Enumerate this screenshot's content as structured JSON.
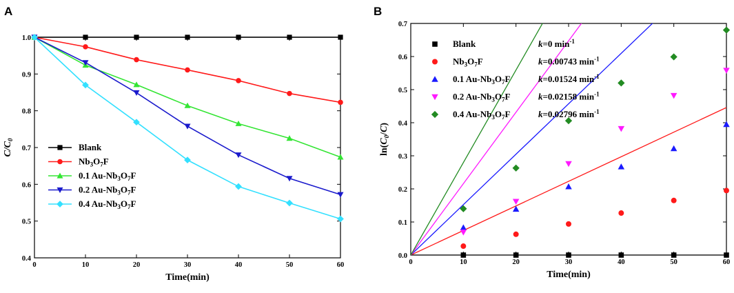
{
  "chart_data": [
    {
      "panel": "A",
      "type": "line",
      "xlabel": "Time(min)",
      "ylabel": "C/C_0",
      "ylabel_parts": {
        "main": "C/C",
        "sub": "0"
      },
      "xlim": [
        0,
        60
      ],
      "ylim": [
        0.4,
        1.0
      ],
      "xticks": [
        0,
        10,
        20,
        30,
        40,
        50,
        60
      ],
      "yticks": [
        0.4,
        0.5,
        0.6,
        0.7,
        0.8,
        0.9,
        1.0
      ],
      "legend_position": "bottom-left",
      "x": [
        0,
        10,
        20,
        30,
        40,
        50,
        60
      ],
      "series": [
        {
          "name": "Blank",
          "label_parts": [
            {
              "t": "Blank"
            }
          ],
          "color": "#000000",
          "marker": "square",
          "values": [
            1.0,
            1.0,
            1.0,
            1.0,
            1.0,
            1.0,
            1.0
          ]
        },
        {
          "name": "Nb3O7F",
          "label_parts": [
            {
              "t": "Nb"
            },
            {
              "t": "3",
              "sub": true
            },
            {
              "t": "O"
            },
            {
              "t": "7",
              "sub": true
            },
            {
              "t": "F"
            }
          ],
          "color": "#ff1a1a",
          "marker": "circle",
          "values": [
            1.0,
            0.974,
            0.939,
            0.911,
            0.882,
            0.847,
            0.823
          ]
        },
        {
          "name": "0.1 Au-Nb3O7F",
          "label_parts": [
            {
              "t": "0.1 Au-Nb"
            },
            {
              "t": "3",
              "sub": true
            },
            {
              "t": "O"
            },
            {
              "t": "7",
              "sub": true
            },
            {
              "t": "F"
            }
          ],
          "color": "#33e533",
          "marker": "triangle-up",
          "values": [
            1.0,
            0.924,
            0.871,
            0.814,
            0.765,
            0.725,
            0.674
          ]
        },
        {
          "name": "0.2 Au-Nb3O7F",
          "label_parts": [
            {
              "t": "0.2 Au-Nb"
            },
            {
              "t": "3",
              "sub": true
            },
            {
              "t": "O"
            },
            {
              "t": "7",
              "sub": true
            },
            {
              "t": "F"
            }
          ],
          "color": "#1a1acc",
          "marker": "triangle-down",
          "values": [
            1.0,
            0.931,
            0.849,
            0.758,
            0.68,
            0.616,
            0.572
          ]
        },
        {
          "name": "0.4 Au-Nb3O7F",
          "label_parts": [
            {
              "t": "0.4 Au-Nb"
            },
            {
              "t": "3",
              "sub": true
            },
            {
              "t": "O"
            },
            {
              "t": "7",
              "sub": true
            },
            {
              "t": "F"
            }
          ],
          "color": "#33e0ff",
          "marker": "diamond",
          "values": [
            1.0,
            0.87,
            0.769,
            0.666,
            0.594,
            0.549,
            0.506
          ]
        }
      ]
    },
    {
      "panel": "B",
      "type": "scatter",
      "xlabel": "Time(min)",
      "ylabel": "ln(C_0/C)",
      "ylabel_parts": {
        "pre": "ln(",
        "main": "C",
        "sub": "0",
        "post": "/C)"
      },
      "xlim": [
        0,
        60
      ],
      "ylim": [
        0,
        0.7
      ],
      "xticks": [
        0,
        10,
        20,
        30,
        40,
        50,
        60
      ],
      "yticks": [
        0.0,
        0.1,
        0.2,
        0.3,
        0.4,
        0.5,
        0.6,
        0.7
      ],
      "legend_position": "top-left",
      "x": [
        0,
        10,
        20,
        30,
        40,
        50,
        60
      ],
      "series": [
        {
          "name": "Blank",
          "label_parts": [
            {
              "t": "Blank"
            }
          ],
          "k_label": "k=0 min-1",
          "k_parts": {
            "k": "k",
            "rest": "=0 min",
            "sup": "-1"
          },
          "k": 0.0,
          "color": "#000000",
          "marker": "square",
          "values": [
            0,
            0,
            0,
            0,
            0,
            0,
            0
          ]
        },
        {
          "name": "Nb3O7F",
          "label_parts": [
            {
              "t": "Nb"
            },
            {
              "t": "3",
              "sub": true
            },
            {
              "t": "O"
            },
            {
              "t": "7",
              "sub": true
            },
            {
              "t": "F"
            }
          ],
          "k_label": "k=0.00743 min-1",
          "k_parts": {
            "k": "k",
            "rest": "=0.00743 min",
            "sup": "-1"
          },
          "k": 0.00743,
          "color": "#ff1a1a",
          "marker": "circle",
          "values": [
            0,
            0.027,
            0.063,
            0.094,
            0.127,
            0.165,
            0.195
          ]
        },
        {
          "name": "0.1 Au-Nb3O7F",
          "label_parts": [
            {
              "t": "0.1 Au-Nb"
            },
            {
              "t": "3",
              "sub": true
            },
            {
              "t": "O"
            },
            {
              "t": "7",
              "sub": true
            },
            {
              "t": "F"
            }
          ],
          "k_label": "k=0.01524 min-1",
          "k_parts": {
            "k": "k",
            "rest": "=0.01524 min",
            "sup": "-1"
          },
          "k": 0.01524,
          "color": "#1a1aff",
          "marker": "triangle-up",
          "values": [
            0,
            0.083,
            0.139,
            0.207,
            0.267,
            0.322,
            0.395
          ]
        },
        {
          "name": "0.2 Au-Nb3O7F",
          "label_parts": [
            {
              "t": "0.2 Au-Nb"
            },
            {
              "t": "3",
              "sub": true
            },
            {
              "t": "O"
            },
            {
              "t": "7",
              "sub": true
            },
            {
              "t": "F"
            }
          ],
          "k_label": "k=0.02158 min-1",
          "k_parts": {
            "k": "k",
            "rest": "=0.02158 min",
            "sup": "-1"
          },
          "k": 0.02158,
          "color": "#ff1aff",
          "marker": "triangle-down",
          "values": [
            0,
            0.069,
            0.162,
            0.276,
            0.382,
            0.482,
            0.558
          ]
        },
        {
          "name": "0.4 Au-Nb3O7F",
          "label_parts": [
            {
              "t": "0.4 Au-Nb"
            },
            {
              "t": "3",
              "sub": true
            },
            {
              "t": "O"
            },
            {
              "t": "7",
              "sub": true
            },
            {
              "t": "F"
            }
          ],
          "k_label": "k=0.02796 min-1",
          "k_parts": {
            "k": "k",
            "rest": "=0.02796 min",
            "sup": "-1"
          },
          "k": 0.02796,
          "color": "#228b22",
          "marker": "diamond",
          "values": [
            0,
            0.14,
            0.263,
            0.406,
            0.52,
            0.599,
            0.68
          ]
        }
      ]
    }
  ]
}
